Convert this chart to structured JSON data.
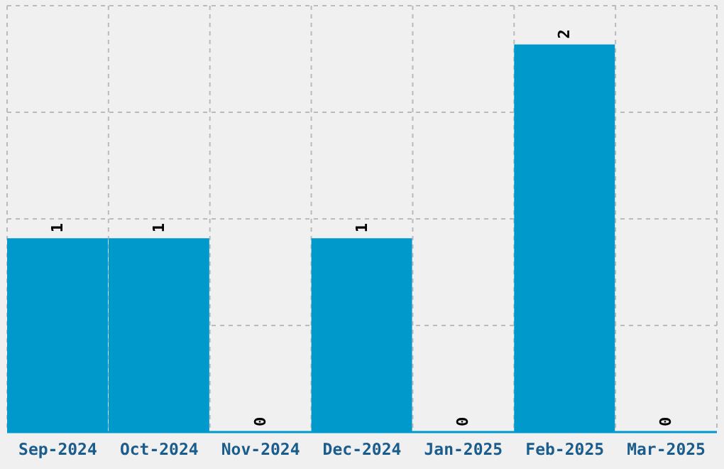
{
  "chart_data": {
    "type": "bar",
    "categories": [
      "Sep-2024",
      "Oct-2024",
      "Nov-2024",
      "Dec-2024",
      "Jan-2025",
      "Feb-2025",
      "Mar-2025"
    ],
    "values": [
      1,
      1,
      0,
      1,
      0,
      2,
      0
    ],
    "color": "#0099cc",
    "ylim": [
      0,
      2.2
    ],
    "yticks": [
      {
        "value": 0.55,
        "label": null
      },
      {
        "value": 1.1,
        "label": null
      },
      {
        "value": 1.65,
        "label": null
      }
    ],
    "grid": true,
    "tick_labels": "x",
    "data_labels": true
  }
}
